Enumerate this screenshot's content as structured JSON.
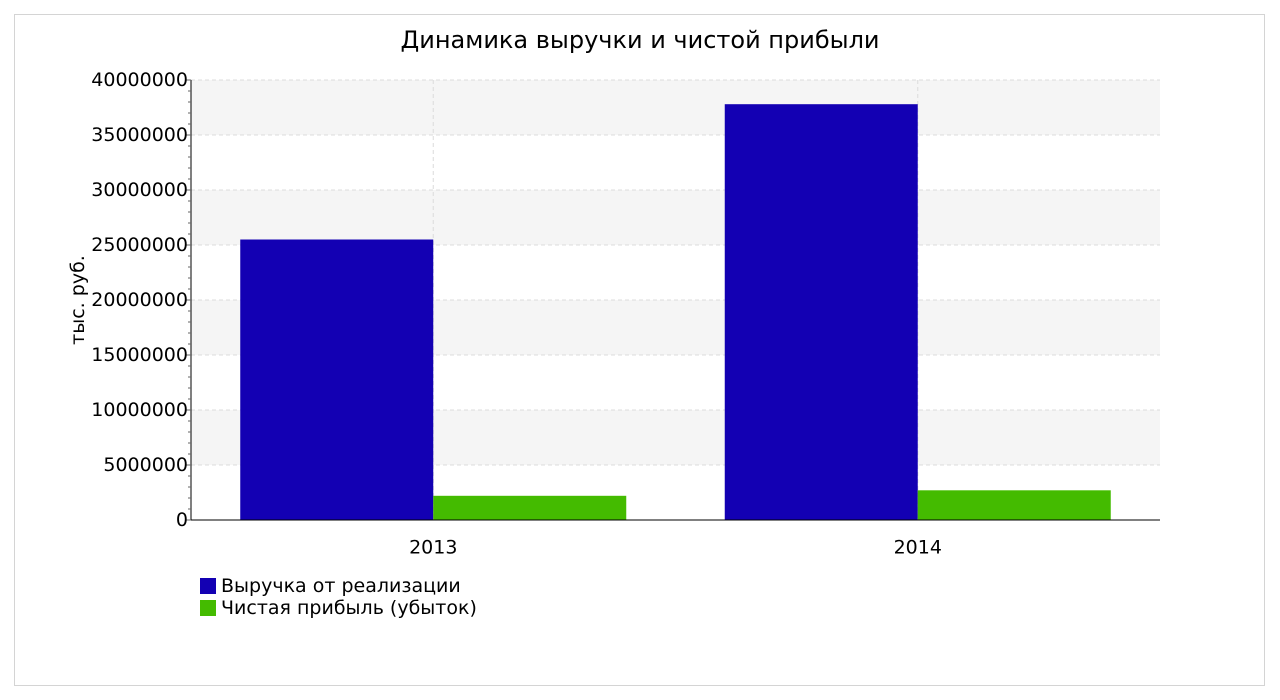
{
  "chart_data": {
    "type": "bar",
    "title": "Динамика выручки и чистой прибыли",
    "xlabel": "",
    "ylabel": "тыс. руб.",
    "categories": [
      "2013",
      "2014"
    ],
    "series": [
      {
        "name": "Выручка от реализации",
        "values": [
          25500000,
          37800000
        ],
        "color": "#1300b3"
      },
      {
        "name": "Чистая прибыль (убыток)",
        "values": [
          2200000,
          2700000
        ],
        "color": "#44bb00"
      }
    ],
    "ylim": [
      0,
      40000000
    ],
    "yticks": [
      "0",
      "5000000",
      "10000000",
      "15000000",
      "20000000",
      "25000000",
      "30000000",
      "35000000",
      "40000000"
    ],
    "grid": true,
    "legend_position": "bottom-left"
  }
}
